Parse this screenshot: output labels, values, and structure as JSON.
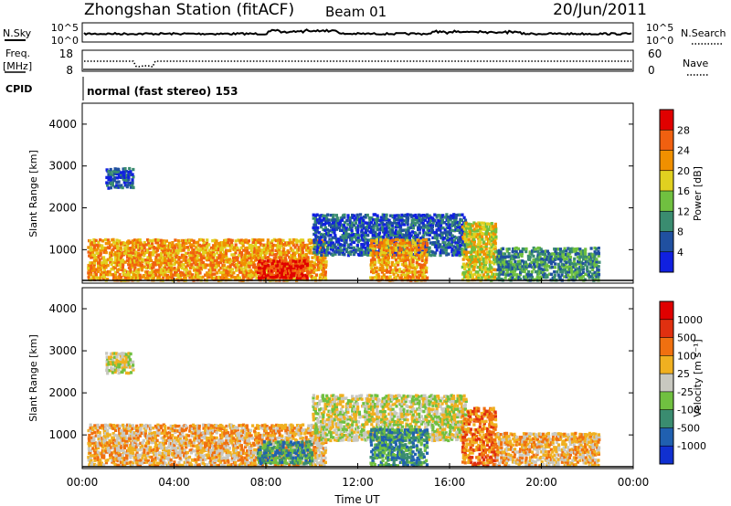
{
  "header": {
    "title": "Zhongshan Station (fitACF)",
    "beam": "Beam 01",
    "date": "20/Jun/2011"
  },
  "strip": {
    "nsky_label": "N.Sky",
    "nsky_ticks": [
      "10^5",
      "10^0"
    ],
    "nsearch_label": "N.Search",
    "nsearch_ticks": [
      "10^5",
      "10^0"
    ],
    "freq_label": "Freq.",
    "freq_unit": "[MHz]",
    "freq_ticks": [
      "18",
      "8"
    ],
    "nave_label": "Nave",
    "nave_ticks": [
      "60",
      "0"
    ],
    "cpid_label": "CPID",
    "cpid_text": "normal (fast stereo) 153"
  },
  "chart_data": [
    {
      "type": "heatmap",
      "panel": "power",
      "ylabel": "Slant Range [km]",
      "yticks": [
        "1000",
        "2000",
        "3000",
        "4000"
      ],
      "ylim": [
        200,
        4500
      ],
      "colorbar_label": "Power [dB]",
      "colorbar_ticks": [
        "4",
        "8",
        "12",
        "16",
        "20",
        "24",
        "28"
      ],
      "colors": [
        "#1020e0",
        "#2050a0",
        "#3a8c70",
        "#70c040",
        "#e0d020",
        "#f09000",
        "#f06010",
        "#e00000"
      ],
      "regions": [
        {
          "t0": 0.2,
          "t1": 10.6,
          "r0": 300,
          "r1": 1300,
          "level": 5
        },
        {
          "t0": 7.6,
          "t1": 9.8,
          "r0": 350,
          "r1": 800,
          "level": 7
        },
        {
          "t0": 10.0,
          "t1": 16.7,
          "r0": 900,
          "r1": 1900,
          "level": 1
        },
        {
          "t0": 12.5,
          "t1": 15.0,
          "r0": 300,
          "r1": 1300,
          "level": 5
        },
        {
          "t0": 16.5,
          "t1": 18.0,
          "r0": 300,
          "r1": 1700,
          "level": 4
        },
        {
          "t0": 1.0,
          "t1": 2.2,
          "r0": 2500,
          "r1": 3000,
          "level": 1
        },
        {
          "t0": 18.0,
          "t1": 22.5,
          "r0": 300,
          "r1": 1100,
          "level": 2
        }
      ]
    },
    {
      "type": "heatmap",
      "panel": "velocity",
      "ylabel": "Slant Range [km]",
      "yticks": [
        "1000",
        "2000",
        "3000",
        "4000"
      ],
      "ylim": [
        200,
        4500
      ],
      "colorbar_label": "Velocity [m s⁻¹]",
      "colorbar_ticks": [
        "1000",
        "500",
        "100",
        "25",
        "-25",
        "-100",
        "-500",
        "-1000"
      ],
      "colors": [
        "#1030d0",
        "#2060b0",
        "#3a8c70",
        "#70c040",
        "#c8c8c0",
        "#f0b020",
        "#f07010",
        "#e03010",
        "#e00000"
      ],
      "regions": [
        {
          "t0": 0.2,
          "t1": 10.6,
          "r0": 300,
          "r1": 1300,
          "level": 5
        },
        {
          "t0": 7.6,
          "t1": 10.0,
          "r0": 350,
          "r1": 900,
          "level": 2
        },
        {
          "t0": 10.0,
          "t1": 16.7,
          "r0": 900,
          "r1": 2000,
          "level": 4
        },
        {
          "t0": 12.5,
          "t1": 15.0,
          "r0": 300,
          "r1": 1200,
          "level": 2
        },
        {
          "t0": 16.5,
          "t1": 18.0,
          "r0": 300,
          "r1": 1700,
          "level": 6
        },
        {
          "t0": 1.0,
          "t1": 2.2,
          "r0": 2500,
          "r1": 3000,
          "level": 4
        },
        {
          "t0": 18.0,
          "t1": 22.5,
          "r0": 300,
          "r1": 1100,
          "level": 5
        }
      ]
    }
  ],
  "xaxis": {
    "label": "Time UT",
    "ticks": [
      "00:00",
      "04:00",
      "08:00",
      "12:00",
      "16:00",
      "20:00",
      "00:00"
    ]
  }
}
